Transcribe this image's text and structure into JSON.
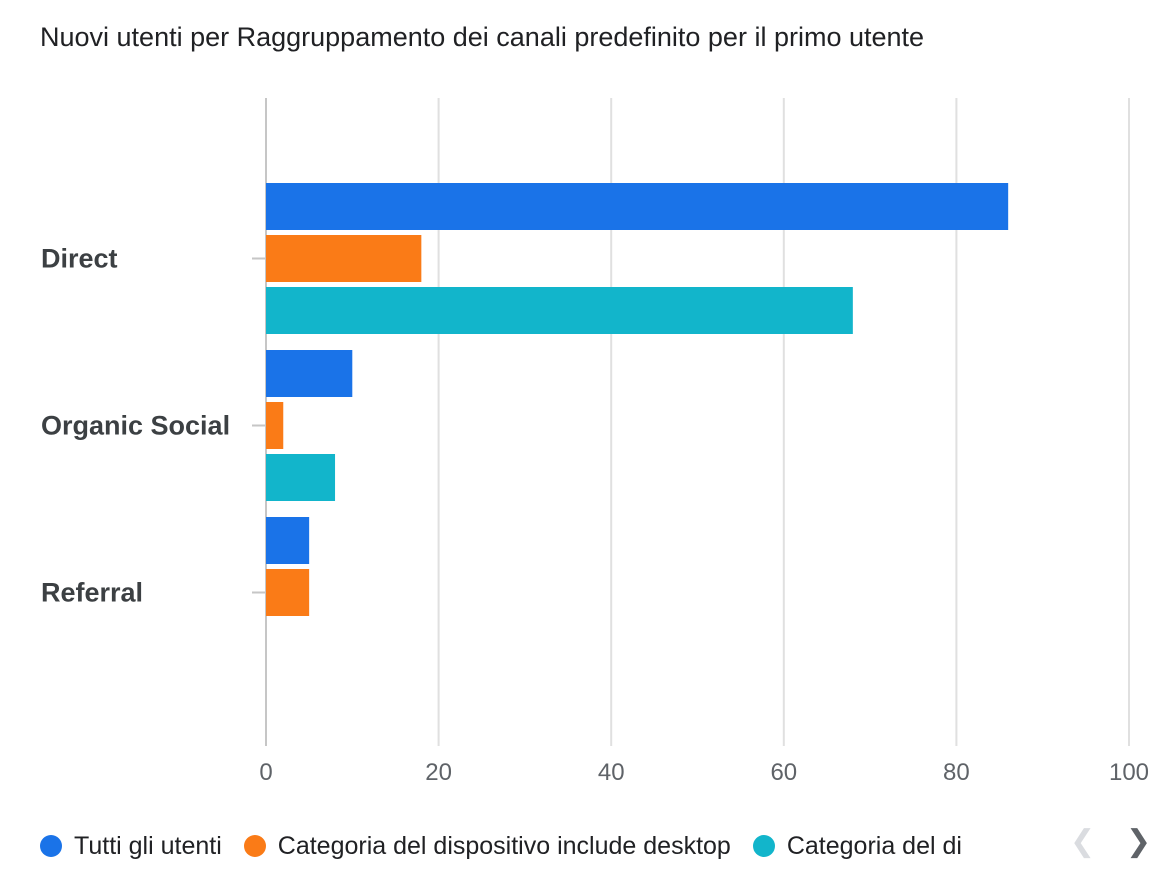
{
  "chart_data": {
    "type": "bar",
    "orientation": "horizontal",
    "title": "Nuovi utenti per Raggruppamento dei canali predefinito per il primo utente",
    "categories": [
      "Direct",
      "Organic Social",
      "Referral"
    ],
    "series": [
      {
        "name": "Tutti gli utenti",
        "color": "#1a73e8",
        "values": [
          86,
          10,
          5
        ]
      },
      {
        "name": "Categoria del dispositivo include desktop",
        "color": "#fa7b17",
        "values": [
          18,
          2,
          5
        ]
      },
      {
        "name": "Categoria del di",
        "color": "#12b5cb",
        "values": [
          68,
          8,
          0
        ]
      }
    ],
    "xlim": [
      0,
      100
    ],
    "xticks": [
      "0",
      "20",
      "40",
      "60",
      "80",
      "100"
    ],
    "grid": true,
    "legend_position": "bottom"
  },
  "legend": {
    "prev_icon": "chevron-left-icon",
    "next_icon": "chevron-right-icon",
    "prev_glyph": "❮",
    "next_glyph": "❯"
  }
}
